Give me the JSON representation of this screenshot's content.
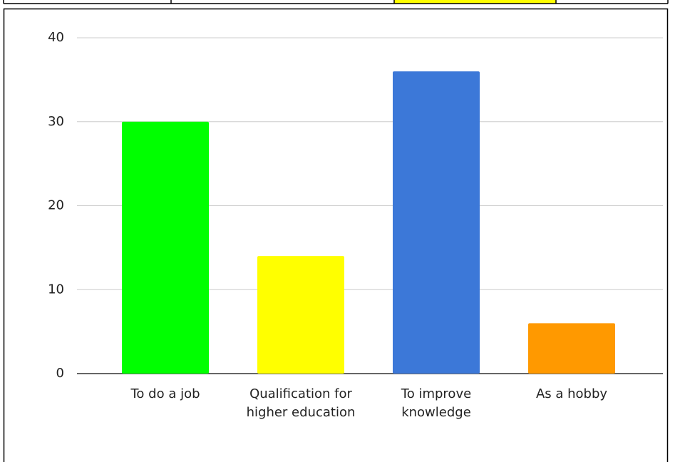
{
  "chart_data": {
    "type": "bar",
    "categories": [
      "To do a job",
      "Qualification for higher education",
      "To improve knowledge",
      "As a hobby"
    ],
    "values": [
      30,
      14,
      36,
      6
    ],
    "colors": [
      "#00ff00",
      "#ffff00",
      "#3c78d8",
      "#ff9900"
    ],
    "ylim": [
      0,
      40
    ],
    "yticks": [
      0,
      10,
      20,
      30,
      40
    ],
    "grid": true
  }
}
